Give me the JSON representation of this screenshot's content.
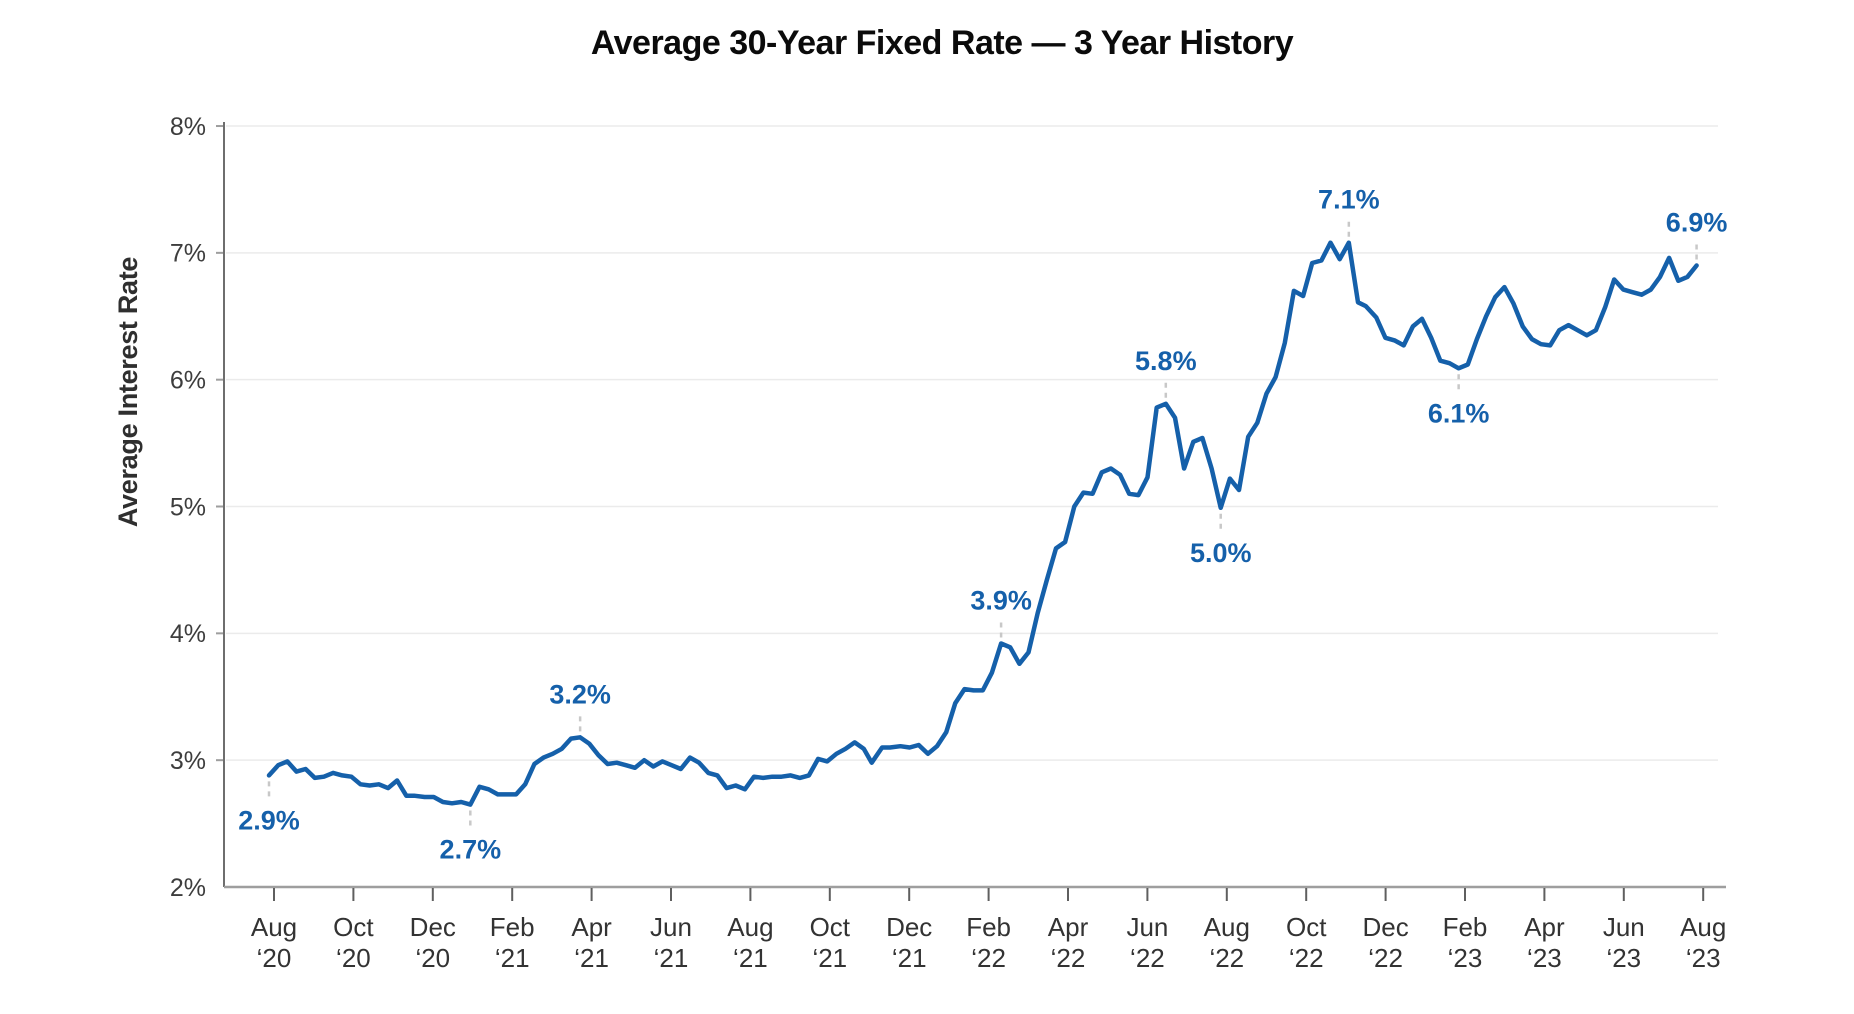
{
  "page": {
    "background": "#ffffff"
  },
  "header": {
    "title": "Average 30-Year Fixed Rate — 3 Year History"
  },
  "chart": {
    "y_axis_label": "Average Interest Rate",
    "colors": {
      "line": "#1560aa",
      "annotation_text": "#1560aa",
      "annotation_dash": "#c8c8c8",
      "grid": "#ebebeb",
      "y_axis": "#6e6e6e",
      "x_axis": "#9e9e9e",
      "tick_mark": "#5f5f5f",
      "x_tick_text": "#333333",
      "y_tick_text": "#3d3d3d",
      "title_text": "#0b0b0b"
    }
  },
  "chart_data": {
    "type": "line",
    "title": "Average 30-Year Fixed Rate — 3 Year History",
    "xlabel": "",
    "ylabel": "Average Interest Rate",
    "ylim": [
      2,
      8
    ],
    "x_range": [
      "2020-08-06",
      "2023-08-03"
    ],
    "grid": "horizontal",
    "legend": "none",
    "y_tick_labels": [
      "8%",
      "7%",
      "6%",
      "5%",
      "4%",
      "3%",
      "2%"
    ],
    "x_tick_labels": [
      [
        "Aug",
        "‘20"
      ],
      [
        "Oct",
        "‘20"
      ],
      [
        "Dec",
        "‘20"
      ],
      [
        "Feb",
        "‘21"
      ],
      [
        "Apr",
        "‘21"
      ],
      [
        "Jun",
        "‘21"
      ],
      [
        "Aug",
        "‘21"
      ],
      [
        "Oct",
        "‘21"
      ],
      [
        "Dec",
        "‘21"
      ],
      [
        "Feb",
        "‘22"
      ],
      [
        "Apr",
        "‘22"
      ],
      [
        "Jun",
        "‘22"
      ],
      [
        "Aug",
        "‘22"
      ],
      [
        "Oct",
        "‘22"
      ],
      [
        "Dec",
        "‘22"
      ],
      [
        "Feb",
        "‘23"
      ],
      [
        "Apr",
        "‘23"
      ],
      [
        "Jun",
        "‘23"
      ],
      [
        "Aug",
        "‘23"
      ]
    ],
    "series": [
      {
        "name": "Average 30-Year Fixed Rate",
        "points": [
          [
            "2020-08-06",
            2.88
          ],
          [
            "2020-08-13",
            2.96
          ],
          [
            "2020-08-20",
            2.99
          ],
          [
            "2020-08-27",
            2.91
          ],
          [
            "2020-09-03",
            2.93
          ],
          [
            "2020-09-10",
            2.86
          ],
          [
            "2020-09-17",
            2.87
          ],
          [
            "2020-09-24",
            2.9
          ],
          [
            "2020-10-01",
            2.88
          ],
          [
            "2020-10-08",
            2.87
          ],
          [
            "2020-10-15",
            2.81
          ],
          [
            "2020-10-22",
            2.8
          ],
          [
            "2020-10-29",
            2.81
          ],
          [
            "2020-11-05",
            2.78
          ],
          [
            "2020-11-12",
            2.84
          ],
          [
            "2020-11-19",
            2.72
          ],
          [
            "2020-11-25",
            2.72
          ],
          [
            "2020-12-03",
            2.71
          ],
          [
            "2020-12-10",
            2.71
          ],
          [
            "2020-12-17",
            2.67
          ],
          [
            "2020-12-24",
            2.66
          ],
          [
            "2020-12-31",
            2.67
          ],
          [
            "2021-01-07",
            2.65
          ],
          [
            "2021-01-14",
            2.79
          ],
          [
            "2021-01-21",
            2.77
          ],
          [
            "2021-01-28",
            2.73
          ],
          [
            "2021-02-04",
            2.73
          ],
          [
            "2021-02-11",
            2.73
          ],
          [
            "2021-02-18",
            2.81
          ],
          [
            "2021-02-25",
            2.97
          ],
          [
            "2021-03-04",
            3.02
          ],
          [
            "2021-03-11",
            3.05
          ],
          [
            "2021-03-18",
            3.09
          ],
          [
            "2021-03-25",
            3.17
          ],
          [
            "2021-04-01",
            3.18
          ],
          [
            "2021-04-08",
            3.13
          ],
          [
            "2021-04-15",
            3.04
          ],
          [
            "2021-04-22",
            2.97
          ],
          [
            "2021-04-29",
            2.98
          ],
          [
            "2021-05-06",
            2.96
          ],
          [
            "2021-05-13",
            2.94
          ],
          [
            "2021-05-20",
            3.0
          ],
          [
            "2021-05-27",
            2.95
          ],
          [
            "2021-06-03",
            2.99
          ],
          [
            "2021-06-10",
            2.96
          ],
          [
            "2021-06-17",
            2.93
          ],
          [
            "2021-06-24",
            3.02
          ],
          [
            "2021-07-01",
            2.98
          ],
          [
            "2021-07-08",
            2.9
          ],
          [
            "2021-07-15",
            2.88
          ],
          [
            "2021-07-22",
            2.78
          ],
          [
            "2021-07-29",
            2.8
          ],
          [
            "2021-08-05",
            2.77
          ],
          [
            "2021-08-12",
            2.87
          ],
          [
            "2021-08-19",
            2.86
          ],
          [
            "2021-08-26",
            2.87
          ],
          [
            "2021-09-02",
            2.87
          ],
          [
            "2021-09-09",
            2.88
          ],
          [
            "2021-09-16",
            2.86
          ],
          [
            "2021-09-23",
            2.88
          ],
          [
            "2021-09-30",
            3.01
          ],
          [
            "2021-10-07",
            2.99
          ],
          [
            "2021-10-14",
            3.05
          ],
          [
            "2021-10-21",
            3.09
          ],
          [
            "2021-10-28",
            3.14
          ],
          [
            "2021-11-04",
            3.09
          ],
          [
            "2021-11-10",
            2.98
          ],
          [
            "2021-11-18",
            3.1
          ],
          [
            "2021-11-24",
            3.1
          ],
          [
            "2021-12-02",
            3.11
          ],
          [
            "2021-12-09",
            3.1
          ],
          [
            "2021-12-16",
            3.12
          ],
          [
            "2021-12-23",
            3.05
          ],
          [
            "2021-12-30",
            3.11
          ],
          [
            "2022-01-06",
            3.22
          ],
          [
            "2022-01-13",
            3.45
          ],
          [
            "2022-01-20",
            3.56
          ],
          [
            "2022-01-27",
            3.55
          ],
          [
            "2022-02-03",
            3.55
          ],
          [
            "2022-02-10",
            3.69
          ],
          [
            "2022-02-17",
            3.92
          ],
          [
            "2022-02-24",
            3.89
          ],
          [
            "2022-03-03",
            3.76
          ],
          [
            "2022-03-10",
            3.85
          ],
          [
            "2022-03-17",
            4.16
          ],
          [
            "2022-03-24",
            4.42
          ],
          [
            "2022-03-31",
            4.67
          ],
          [
            "2022-04-07",
            4.72
          ],
          [
            "2022-04-14",
            5.0
          ],
          [
            "2022-04-21",
            5.11
          ],
          [
            "2022-04-28",
            5.1
          ],
          [
            "2022-05-05",
            5.27
          ],
          [
            "2022-05-12",
            5.3
          ],
          [
            "2022-05-19",
            5.25
          ],
          [
            "2022-05-26",
            5.1
          ],
          [
            "2022-06-02",
            5.09
          ],
          [
            "2022-06-09",
            5.23
          ],
          [
            "2022-06-16",
            5.78
          ],
          [
            "2022-06-23",
            5.81
          ],
          [
            "2022-06-30",
            5.7
          ],
          [
            "2022-07-07",
            5.3
          ],
          [
            "2022-07-14",
            5.51
          ],
          [
            "2022-07-21",
            5.54
          ],
          [
            "2022-07-28",
            5.3
          ],
          [
            "2022-08-04",
            4.99
          ],
          [
            "2022-08-11",
            5.22
          ],
          [
            "2022-08-18",
            5.13
          ],
          [
            "2022-08-25",
            5.55
          ],
          [
            "2022-09-01",
            5.66
          ],
          [
            "2022-09-08",
            5.89
          ],
          [
            "2022-09-15",
            6.02
          ],
          [
            "2022-09-22",
            6.29
          ],
          [
            "2022-09-29",
            6.7
          ],
          [
            "2022-10-06",
            6.66
          ],
          [
            "2022-10-13",
            6.92
          ],
          [
            "2022-10-20",
            6.94
          ],
          [
            "2022-10-27",
            7.08
          ],
          [
            "2022-11-03",
            6.95
          ],
          [
            "2022-11-10",
            7.08
          ],
          [
            "2022-11-17",
            6.61
          ],
          [
            "2022-11-23",
            6.58
          ],
          [
            "2022-12-01",
            6.49
          ],
          [
            "2022-12-08",
            6.33
          ],
          [
            "2022-12-15",
            6.31
          ],
          [
            "2022-12-22",
            6.27
          ],
          [
            "2022-12-29",
            6.42
          ],
          [
            "2023-01-05",
            6.48
          ],
          [
            "2023-01-12",
            6.33
          ],
          [
            "2023-01-19",
            6.15
          ],
          [
            "2023-01-26",
            6.13
          ],
          [
            "2023-02-02",
            6.09
          ],
          [
            "2023-02-09",
            6.12
          ],
          [
            "2023-02-16",
            6.32
          ],
          [
            "2023-02-23",
            6.5
          ],
          [
            "2023-03-02",
            6.65
          ],
          [
            "2023-03-09",
            6.73
          ],
          [
            "2023-03-16",
            6.6
          ],
          [
            "2023-03-23",
            6.42
          ],
          [
            "2023-03-30",
            6.32
          ],
          [
            "2023-04-06",
            6.28
          ],
          [
            "2023-04-13",
            6.27
          ],
          [
            "2023-04-20",
            6.39
          ],
          [
            "2023-04-27",
            6.43
          ],
          [
            "2023-05-04",
            6.39
          ],
          [
            "2023-05-11",
            6.35
          ],
          [
            "2023-05-18",
            6.39
          ],
          [
            "2023-05-25",
            6.57
          ],
          [
            "2023-06-01",
            6.79
          ],
          [
            "2023-06-08",
            6.71
          ],
          [
            "2023-06-15",
            6.69
          ],
          [
            "2023-06-22",
            6.67
          ],
          [
            "2023-06-29",
            6.71
          ],
          [
            "2023-07-06",
            6.81
          ],
          [
            "2023-07-13",
            6.96
          ],
          [
            "2023-07-20",
            6.78
          ],
          [
            "2023-07-27",
            6.81
          ],
          [
            "2023-08-03",
            6.9
          ]
        ]
      }
    ],
    "annotations": [
      {
        "label": "2.9%",
        "date": "2020-08-06",
        "value": 2.88,
        "placement": "below"
      },
      {
        "label": "2.7%",
        "date": "2021-01-07",
        "value": 2.65,
        "placement": "below"
      },
      {
        "label": "3.2%",
        "date": "2021-04-01",
        "value": 3.18,
        "placement": "above"
      },
      {
        "label": "3.9%",
        "date": "2022-02-17",
        "value": 3.92,
        "placement": "above"
      },
      {
        "label": "5.8%",
        "date": "2022-06-23",
        "value": 5.81,
        "placement": "above"
      },
      {
        "label": "5.0%",
        "date": "2022-08-04",
        "value": 4.99,
        "placement": "below"
      },
      {
        "label": "7.1%",
        "date": "2022-11-10",
        "value": 7.08,
        "placement": "above"
      },
      {
        "label": "6.1%",
        "date": "2023-02-02",
        "value": 6.09,
        "placement": "below"
      },
      {
        "label": "6.9%",
        "date": "2023-08-03",
        "value": 6.9,
        "placement": "above"
      }
    ]
  }
}
